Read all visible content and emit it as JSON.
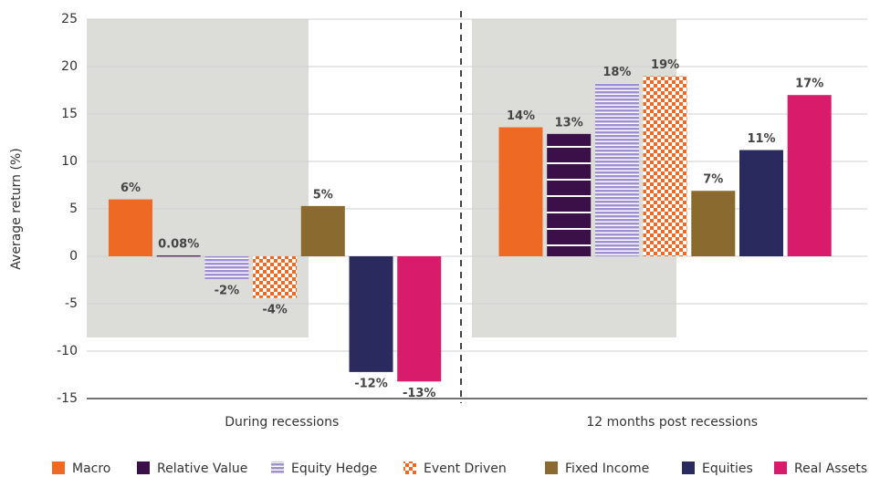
{
  "chart_data": {
    "type": "bar",
    "y_axis_label": "Average return (%)",
    "categories": [
      "During recessions",
      "12 months post recessions"
    ],
    "ylim": [
      -15,
      25
    ],
    "yticks": [
      -15,
      -10,
      -5,
      0,
      5,
      10,
      15,
      20,
      25
    ],
    "grid": true,
    "series": [
      {
        "name": "Macro",
        "color": "#ee6a24",
        "pattern": "solid",
        "values": [
          6,
          13.6
        ],
        "value_labels": [
          "6%",
          "14%"
        ]
      },
      {
        "name": "Relative Value",
        "color": "#3b1048",
        "pattern": "lines",
        "values": [
          0.08,
          12.9
        ],
        "value_labels": [
          "0.08%",
          "13%"
        ]
      },
      {
        "name": "Equity Hedge",
        "color": "#9e8fd2",
        "pattern": "stripes",
        "values": [
          -2.4,
          18.2
        ],
        "value_labels": [
          "-2%",
          "18%"
        ]
      },
      {
        "name": "Event Driven",
        "color": "#ee6a24",
        "pattern": "checker",
        "values": [
          -4.4,
          19
        ],
        "value_labels": [
          "-4%",
          "19%"
        ]
      },
      {
        "name": "Fixed Income",
        "color": "#8a6a2e",
        "pattern": "solid",
        "values": [
          5.3,
          6.9
        ],
        "value_labels": [
          "5%",
          "7%"
        ]
      },
      {
        "name": "Equities",
        "color": "#2b2a5e",
        "pattern": "solid",
        "values": [
          -12.2,
          11.2
        ],
        "value_labels": [
          "-12%",
          "11%"
        ]
      },
      {
        "name": "Real Assets",
        "color": "#d81b6a",
        "pattern": "solid",
        "values": [
          -13.2,
          17
        ],
        "value_labels": [
          "-13%",
          "17%"
        ]
      }
    ]
  }
}
